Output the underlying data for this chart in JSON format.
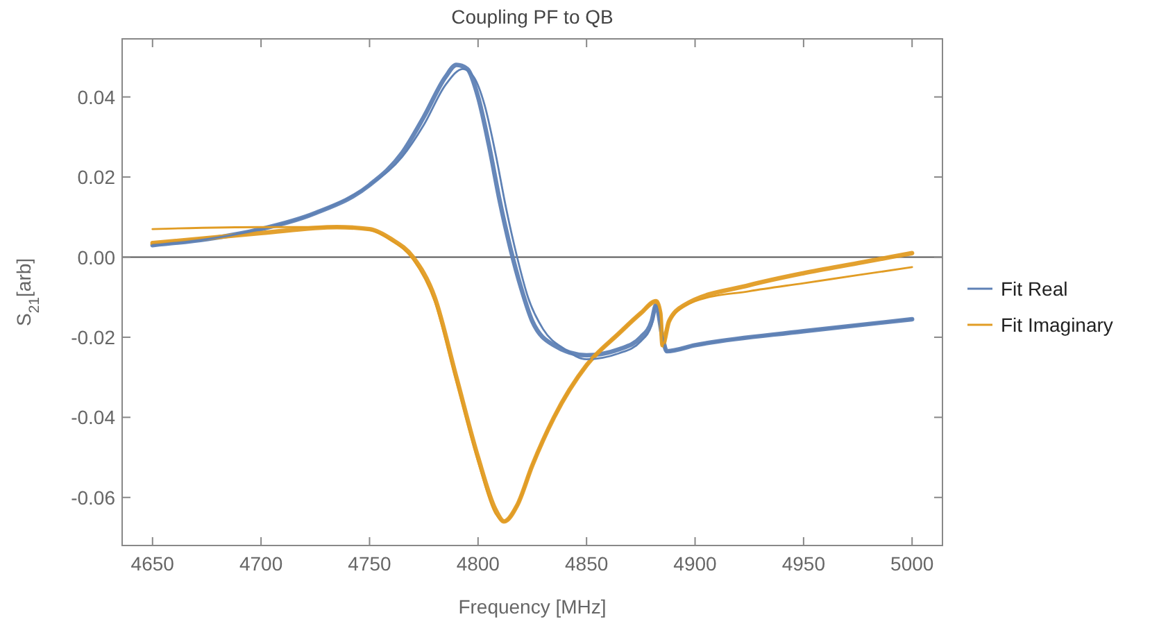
{
  "chart_data": {
    "type": "line",
    "title": "Coupling PF to QB",
    "xlabel": "Frequency [MHz]",
    "ylabel": "S$_{21}$[arb]",
    "xlim": [
      4636,
      5014
    ],
    "ylim": [
      -0.072,
      0.0545
    ],
    "xticks": [
      4650,
      4700,
      4750,
      4800,
      4850,
      4900,
      4950,
      5000
    ],
    "yticks": [
      {
        "value": -0.06,
        "label": "-0.06"
      },
      {
        "value": -0.04,
        "label": "-0.04"
      },
      {
        "value": -0.02,
        "label": "-0.02"
      },
      {
        "value": 0,
        "label": "0.00"
      },
      {
        "value": 0.02,
        "label": "0.02"
      },
      {
        "value": 0.04,
        "label": "0.04"
      }
    ],
    "ref_lines": [
      {
        "axis": "y",
        "value": 0,
        "color": "#555555"
      }
    ],
    "legend": "right",
    "grid": false,
    "line_style": "solid",
    "marker": "none",
    "series": [
      {
        "color": "#5e81b5",
        "x": [
          4650,
          4675,
          4700,
          4725,
          4750,
          4765,
          4775,
          4785,
          4790,
          4795,
          4800,
          4805,
          4810,
          4815,
          4820,
          4825,
          4835,
          4850,
          4865,
          4875,
          4880,
          4882,
          4885,
          4887,
          4900,
          4950,
          5000
        ],
        "values": [
          0.003,
          0.0045,
          0.007,
          0.011,
          0.018,
          0.026,
          0.035,
          0.045,
          0.048,
          0.047,
          0.04,
          0.028,
          0.014,
          0.002,
          -0.008,
          -0.016,
          -0.022,
          -0.0245,
          -0.023,
          -0.02,
          -0.016,
          -0.012,
          -0.02,
          -0.0235,
          -0.022,
          -0.0185,
          -0.0155
        ]
      },
      {
        "color": "#e19c24",
        "x": [
          4650,
          4700,
          4735,
          4750,
          4760,
          4770,
          4780,
          4790,
          4800,
          4808,
          4812,
          4818,
          4825,
          4835,
          4850,
          4865,
          4875,
          4882,
          4884,
          4885,
          4888,
          4895,
          4925,
          4950,
          4975,
          5000
        ],
        "values": [
          0.0035,
          0.006,
          0.0075,
          0.007,
          0.0045,
          0,
          -0.01,
          -0.03,
          -0.05,
          -0.063,
          -0.066,
          -0.062,
          -0.052,
          -0.04,
          -0.027,
          -0.019,
          -0.014,
          -0.011,
          -0.014,
          -0.022,
          -0.016,
          -0.012,
          -0.007,
          -0.004,
          -0.0015,
          0.001
        ]
      },
      {
        "name": "Fit Real",
        "color": "#5e81b5",
        "x": [
          4650,
          4675,
          4700,
          4725,
          4750,
          4765,
          4775,
          4785,
          4793,
          4798,
          4803,
          4808,
          4813,
          4818,
          4823,
          4830,
          4840,
          4850,
          4865,
          4875,
          4880,
          4882,
          4885,
          4887,
          4900,
          4950,
          5000
        ],
        "values": [
          0.003,
          0.0045,
          0.007,
          0.011,
          0.018,
          0.025,
          0.033,
          0.043,
          0.047,
          0.045,
          0.038,
          0.026,
          0.012,
          0.0,
          -0.01,
          -0.018,
          -0.023,
          -0.0255,
          -0.024,
          -0.021,
          -0.017,
          -0.012,
          -0.02,
          -0.0235,
          -0.022,
          -0.0185,
          -0.0155
        ]
      },
      {
        "name": "Fit Imaginary",
        "color": "#e19c24",
        "x": [
          4650,
          4700,
          4735,
          4750,
          4760,
          4770,
          4780,
          4790,
          4800,
          4808,
          4812,
          4818,
          4825,
          4835,
          4850,
          4865,
          4875,
          4882,
          4884,
          4885,
          4888,
          4900,
          4925,
          4950,
          4975,
          5000
        ],
        "values": [
          0.007,
          0.0075,
          0.0075,
          0.0068,
          0.0042,
          -0.0005,
          -0.011,
          -0.031,
          -0.051,
          -0.064,
          -0.066,
          -0.062,
          -0.052,
          -0.04,
          -0.027,
          -0.019,
          -0.014,
          -0.011,
          -0.014,
          -0.022,
          -0.016,
          -0.011,
          -0.0085,
          -0.0065,
          -0.0045,
          -0.0025
        ]
      }
    ]
  }
}
